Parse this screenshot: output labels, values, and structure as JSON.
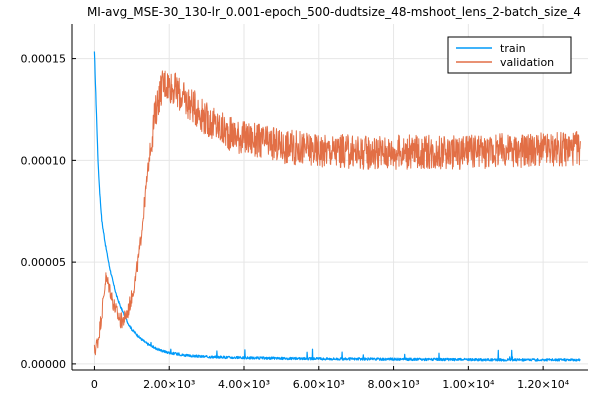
{
  "chart_data": {
    "type": "line",
    "title": "MI-avg_MSE-30_130-lr_0.001-epoch_500-dudtsize_48-mshoot_lens_2-batch_size_4",
    "xlabel": "",
    "ylabel": "",
    "xlim": [
      -600,
      13200
    ],
    "ylim": [
      -3e-06,
      0.000167
    ],
    "x_ticks": [
      0,
      2000,
      4000,
      6000,
      8000,
      10000,
      12000
    ],
    "x_tick_labels": [
      "0",
      "2.00×10³",
      "4.00×10³",
      "6.00×10³",
      "8.00×10³",
      "1.00×10⁴",
      "1.20×10⁴"
    ],
    "y_ticks": [
      0,
      5e-05,
      0.0001,
      0.00015
    ],
    "y_tick_labels": [
      "0.00000",
      "0.00005",
      "0.00010",
      "0.00015"
    ],
    "grid": true,
    "legend_position": "top-right",
    "series": [
      {
        "name": "train",
        "color": "#009af9",
        "points": [
          [
            0,
            0.000153
          ],
          [
            50,
            0.000125
          ],
          [
            100,
            9.8e-05
          ],
          [
            150,
            8.2e-05
          ],
          [
            200,
            7e-05
          ],
          [
            300,
            5.8e-05
          ],
          [
            400,
            4.8e-05
          ],
          [
            500,
            4e-05
          ],
          [
            600,
            3.3e-05
          ],
          [
            700,
            2.8e-05
          ],
          [
            800,
            2.4e-05
          ],
          [
            900,
            2e-05
          ],
          [
            1000,
            1.7e-05
          ],
          [
            1200,
            1.3e-05
          ],
          [
            1400,
            1e-05
          ],
          [
            1600,
            8e-06
          ],
          [
            1800,
            6.5e-06
          ],
          [
            2000,
            5.5e-06
          ],
          [
            2500,
            4e-06
          ],
          [
            3000,
            3.5e-06
          ],
          [
            4000,
            3e-06
          ],
          [
            5000,
            2.7e-06
          ],
          [
            6000,
            2.5e-06
          ],
          [
            7000,
            2.4e-06
          ],
          [
            8000,
            2.3e-06
          ],
          [
            9000,
            2.2e-06
          ],
          [
            10000,
            2.1e-06
          ],
          [
            11000,
            2e-06
          ],
          [
            12000,
            2e-06
          ],
          [
            13000,
            2e-06
          ]
        ]
      },
      {
        "name": "validation",
        "color": "#e26f46",
        "points": [
          [
            0,
            6e-06
          ],
          [
            100,
            1.2e-05
          ],
          [
            200,
            2.5e-05
          ],
          [
            300,
            4.2e-05
          ],
          [
            400,
            3.8e-05
          ],
          [
            500,
            3e-05
          ],
          [
            600,
            2.5e-05
          ],
          [
            700,
            2.1e-05
          ],
          [
            800,
            2.2e-05
          ],
          [
            900,
            2.6e-05
          ],
          [
            1000,
            3.3e-05
          ],
          [
            1100,
            4.2e-05
          ],
          [
            1200,
            5.5e-05
          ],
          [
            1300,
            7.2e-05
          ],
          [
            1400,
            9e-05
          ],
          [
            1500,
            0.000107
          ],
          [
            1600,
            0.00012
          ],
          [
            1700,
            0.00013
          ],
          [
            1800,
            0.000136
          ],
          [
            1900,
            0.000138
          ],
          [
            2000,
            0.000137
          ],
          [
            2200,
            0.000134
          ],
          [
            2400,
            0.00013
          ],
          [
            2600,
            0.000127
          ],
          [
            2800,
            0.000124
          ],
          [
            3000,
            0.00012
          ],
          [
            3500,
            0.000114
          ],
          [
            4000,
            0.000111
          ],
          [
            4500,
            0.000109
          ],
          [
            5000,
            0.000107
          ],
          [
            5500,
            0.000106
          ],
          [
            6000,
            0.000105
          ],
          [
            7000,
            0.000104
          ],
          [
            8000,
            0.000104
          ],
          [
            9000,
            0.000104
          ],
          [
            10000,
            0.000104
          ],
          [
            11000,
            0.000105
          ],
          [
            12000,
            0.000105
          ],
          [
            13000,
            0.000106
          ]
        ]
      }
    ]
  }
}
